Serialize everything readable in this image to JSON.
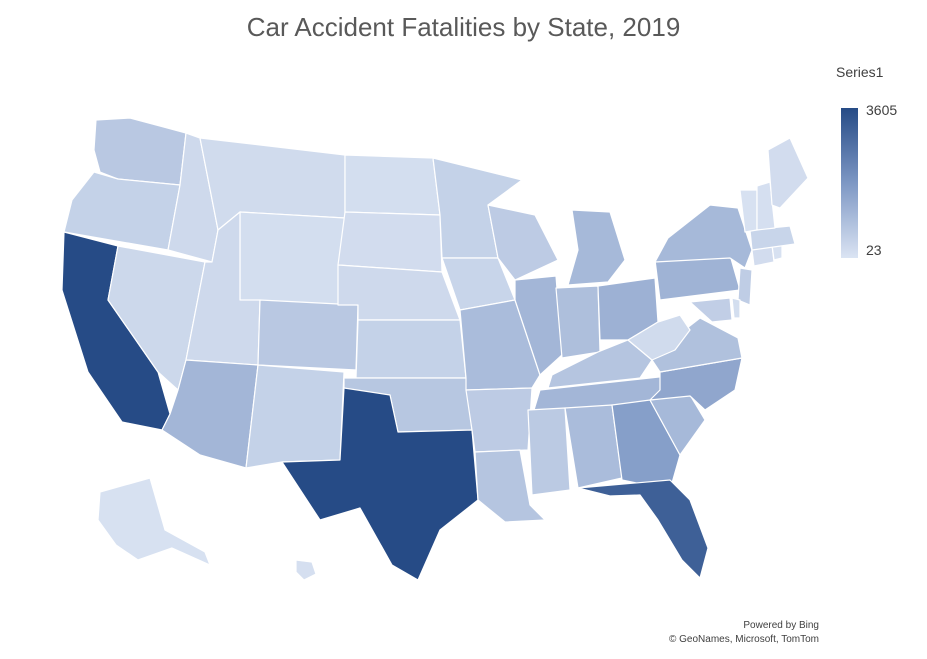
{
  "title": "Car Accident Fatalities by State, 2019",
  "legend": {
    "title": "Series1",
    "max": "3605",
    "min": "23",
    "max_color": "#264b86",
    "mid_color": "#7d97c4",
    "min_color": "#dbe4f3"
  },
  "credits": {
    "line1": "Powered by Bing",
    "line2": "© GeoNames, Microsoft, TomTom"
  },
  "regions": [
    {
      "id": "WA",
      "shade": 0.18
    },
    {
      "id": "OR",
      "shade": 0.12
    },
    {
      "id": "CA",
      "shade": 1.0
    },
    {
      "id": "NV",
      "shade": 0.08
    },
    {
      "id": "ID",
      "shade": 0.07
    },
    {
      "id": "MT",
      "shade": 0.06
    },
    {
      "id": "WY",
      "shade": 0.04
    },
    {
      "id": "UT",
      "shade": 0.07
    },
    {
      "id": "CO",
      "shade": 0.18
    },
    {
      "id": "AZ",
      "shade": 0.3
    },
    {
      "id": "NM",
      "shade": 0.12
    },
    {
      "id": "ND",
      "shade": 0.04
    },
    {
      "id": "SD",
      "shade": 0.05
    },
    {
      "id": "NE",
      "shade": 0.07
    },
    {
      "id": "KS",
      "shade": 0.12
    },
    {
      "id": "OK",
      "shade": 0.19
    },
    {
      "id": "TX",
      "shade": 1.0
    },
    {
      "id": "MN",
      "shade": 0.12
    },
    {
      "id": "IA",
      "shade": 0.1
    },
    {
      "id": "MO",
      "shade": 0.26
    },
    {
      "id": "AR",
      "shade": 0.16
    },
    {
      "id": "LA",
      "shade": 0.2
    },
    {
      "id": "WI",
      "shade": 0.16
    },
    {
      "id": "IL",
      "shade": 0.3
    },
    {
      "id": "MI",
      "shade": 0.28
    },
    {
      "id": "IN",
      "shade": 0.24
    },
    {
      "id": "OH",
      "shade": 0.33
    },
    {
      "id": "KY",
      "shade": 0.2
    },
    {
      "id": "TN",
      "shade": 0.3
    },
    {
      "id": "MS",
      "shade": 0.17
    },
    {
      "id": "AL",
      "shade": 0.26
    },
    {
      "id": "GA",
      "shade": 0.45
    },
    {
      "id": "FL",
      "shade": 0.86
    },
    {
      "id": "SC",
      "shade": 0.28
    },
    {
      "id": "NC",
      "shade": 0.4
    },
    {
      "id": "VA",
      "shade": 0.23
    },
    {
      "id": "WV",
      "shade": 0.06
    },
    {
      "id": "PA",
      "shade": 0.32
    },
    {
      "id": "NY",
      "shade": 0.28
    },
    {
      "id": "NJ",
      "shade": 0.15
    },
    {
      "id": "DE",
      "shade": 0.04
    },
    {
      "id": "MD",
      "shade": 0.14
    },
    {
      "id": "CT",
      "shade": 0.05
    },
    {
      "id": "RI",
      "shade": 0.02
    },
    {
      "id": "MA",
      "shade": 0.1
    },
    {
      "id": "VT",
      "shade": 0.02
    },
    {
      "id": "NH",
      "shade": 0.03
    },
    {
      "id": "ME",
      "shade": 0.05
    },
    {
      "id": "AK",
      "shade": 0.02
    },
    {
      "id": "HI",
      "shade": 0.03
    }
  ]
}
